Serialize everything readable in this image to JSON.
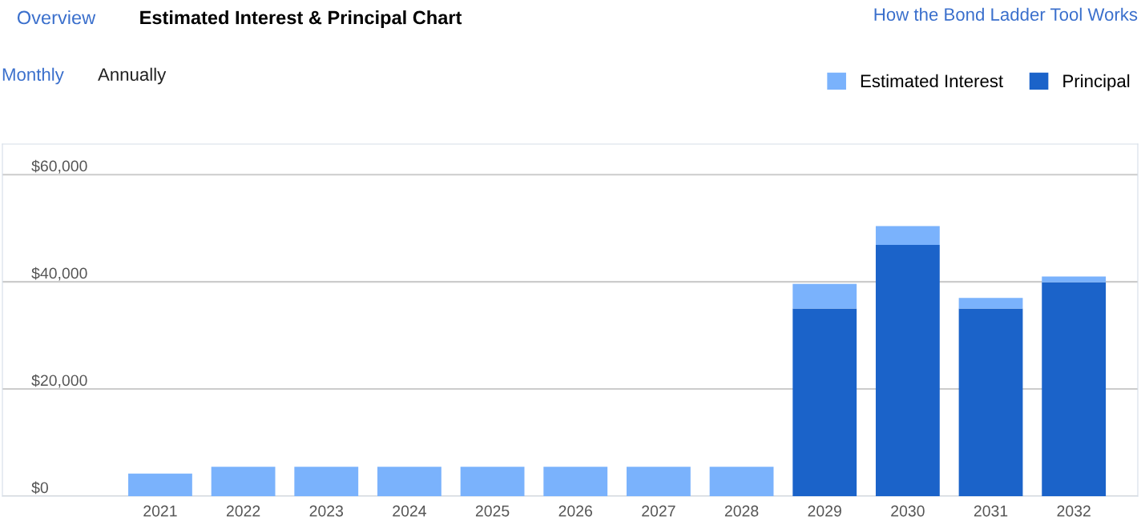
{
  "chart_data": {
    "type": "bar",
    "title": "Estimated Interest & Principal Chart",
    "annotations": [
      "Overview",
      "How the Bond Ladder Tool Works",
      "Monthly",
      "Annually"
    ],
    "categories": [
      "2021",
      "2022",
      "2023",
      "2024",
      "2025",
      "2026",
      "2027",
      "2028",
      "2029",
      "2030",
      "2031",
      "2032"
    ],
    "stacked": true,
    "series": [
      {
        "name": "Principal",
        "color": "#1b63c9",
        "values": [
          0,
          0,
          0,
          0,
          0,
          0,
          0,
          0,
          35000,
          46900,
          35000,
          39900
        ]
      },
      {
        "name": "Estimated Interest",
        "color": "#7ab2fc",
        "values": [
          4200,
          5500,
          5500,
          5500,
          5500,
          5500,
          5500,
          5500,
          4600,
          3500,
          2000,
          1100
        ]
      }
    ],
    "ylim": [
      0,
      65700
    ],
    "yticks": [
      {
        "value": 0,
        "label": "$0"
      },
      {
        "value": 20000,
        "label": "$20,000"
      },
      {
        "value": 40000,
        "label": "$40,000"
      },
      {
        "value": 60000,
        "label": "$60,000"
      }
    ],
    "grid": "y",
    "legend": "top right"
  }
}
